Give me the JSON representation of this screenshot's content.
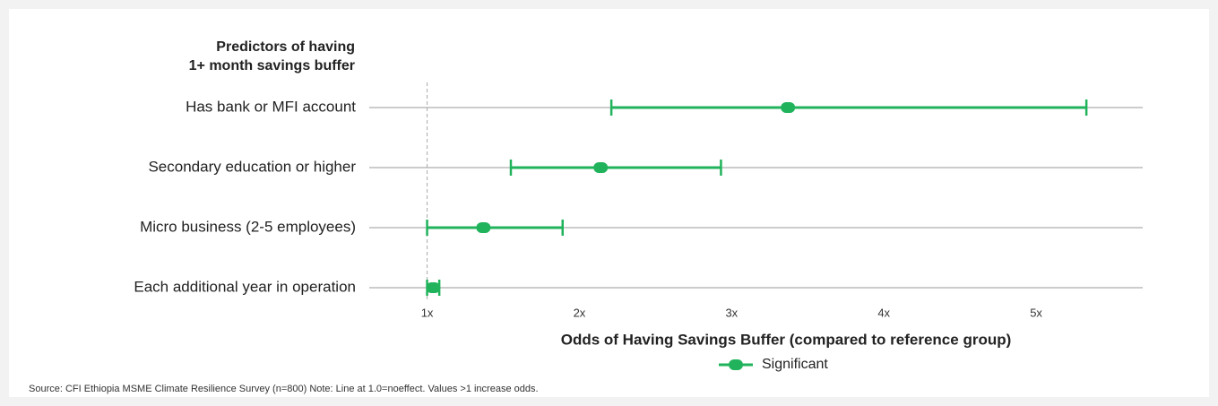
{
  "chart_data": {
    "type": "forest",
    "title": [
      "Predictors of having",
      "1+ month savings buffer"
    ],
    "categories": [
      "Has bank or MFI account",
      "Secondary education or higher",
      "Micro business (2-5 employees)",
      "Each additional year in operation"
    ],
    "series": [
      {
        "name": "Significant",
        "color": "#21b35c",
        "values": [
          3.37,
          2.14,
          1.37,
          1.04
        ],
        "lower": [
          2.21,
          1.55,
          1.0,
          1.0
        ],
        "upper": [
          5.33,
          2.93,
          1.89,
          1.08
        ]
      }
    ],
    "reference_line": 1,
    "xlim": [
      0.62,
      5.7
    ],
    "xticks": [
      {
        "value": 1,
        "label": "1x"
      },
      {
        "value": 2,
        "label": "2x"
      },
      {
        "value": 3,
        "label": "3x"
      },
      {
        "value": 4,
        "label": "4x"
      },
      {
        "value": 5,
        "label": "5x"
      }
    ],
    "x_label": "Odds of Having Savings Buffer (compared to reference group)",
    "grid": true,
    "legend": "bottom",
    "source": "Source: CFI Ethiopia MSME Climate Resilience Survey (n=800) Note: Line at 1.0=noeffect. Values >1 increase odds."
  }
}
